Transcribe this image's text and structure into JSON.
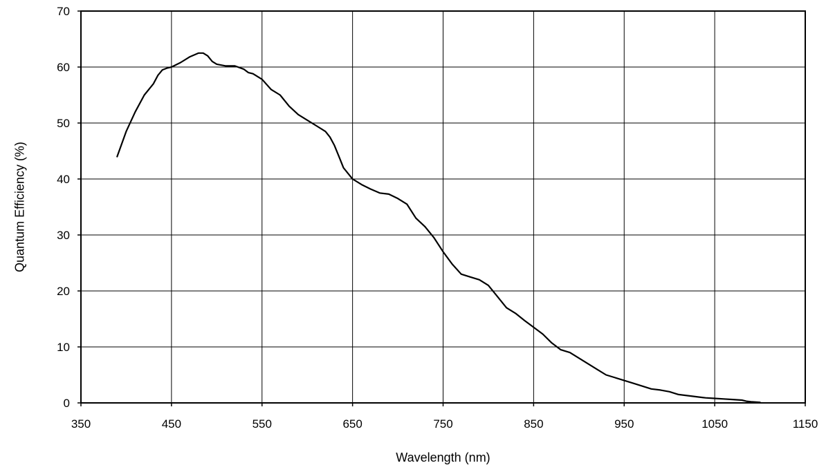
{
  "chart_data": {
    "type": "line",
    "title": "",
    "xlabel": "Wavelength (nm)",
    "ylabel": "Quantum Efficiency (%)",
    "xlim": [
      350,
      1150
    ],
    "ylim": [
      0,
      70
    ],
    "xticks": [
      350,
      450,
      550,
      650,
      750,
      850,
      950,
      1050,
      1150
    ],
    "yticks": [
      0,
      10,
      20,
      30,
      40,
      50,
      60,
      70
    ],
    "grid": true,
    "legend": "none",
    "series": [
      {
        "color": "#000000",
        "x": [
          390,
          400,
          410,
          420,
          430,
          435,
          440,
          445,
          450,
          460,
          470,
          480,
          485,
          490,
          495,
          500,
          510,
          520,
          530,
          535,
          540,
          550,
          560,
          570,
          580,
          590,
          600,
          610,
          620,
          625,
          630,
          635,
          640,
          650,
          660,
          670,
          680,
          690,
          700,
          710,
          720,
          730,
          740,
          750,
          760,
          770,
          780,
          790,
          800,
          810,
          820,
          830,
          840,
          850,
          860,
          870,
          880,
          890,
          900,
          910,
          920,
          930,
          940,
          950,
          960,
          970,
          980,
          990,
          1000,
          1010,
          1020,
          1030,
          1040,
          1050,
          1060,
          1070,
          1080,
          1085,
          1090,
          1100
        ],
        "y": [
          44,
          48.5,
          52,
          55,
          57,
          58.5,
          59.5,
          59.8,
          60,
          60.8,
          61.8,
          62.5,
          62.5,
          62,
          61,
          60.5,
          60.2,
          60.2,
          59.6,
          59,
          58.8,
          57.8,
          56,
          55,
          53,
          51.5,
          50.5,
          49.5,
          48.5,
          47.5,
          46,
          44,
          42,
          40,
          39,
          38.2,
          37.5,
          37.3,
          36.5,
          35.5,
          33,
          31.5,
          29.5,
          27,
          24.8,
          23,
          22.5,
          22,
          21,
          19,
          17,
          16,
          14.7,
          13.5,
          12.3,
          10.7,
          9.5,
          9,
          8,
          7,
          6,
          5,
          4.5,
          4,
          3.5,
          3,
          2.5,
          2.3,
          2,
          1.5,
          1.3,
          1.1,
          0.9,
          0.8,
          0.7,
          0.6,
          0.5,
          0.3,
          0.2,
          0.1
        ]
      }
    ]
  }
}
